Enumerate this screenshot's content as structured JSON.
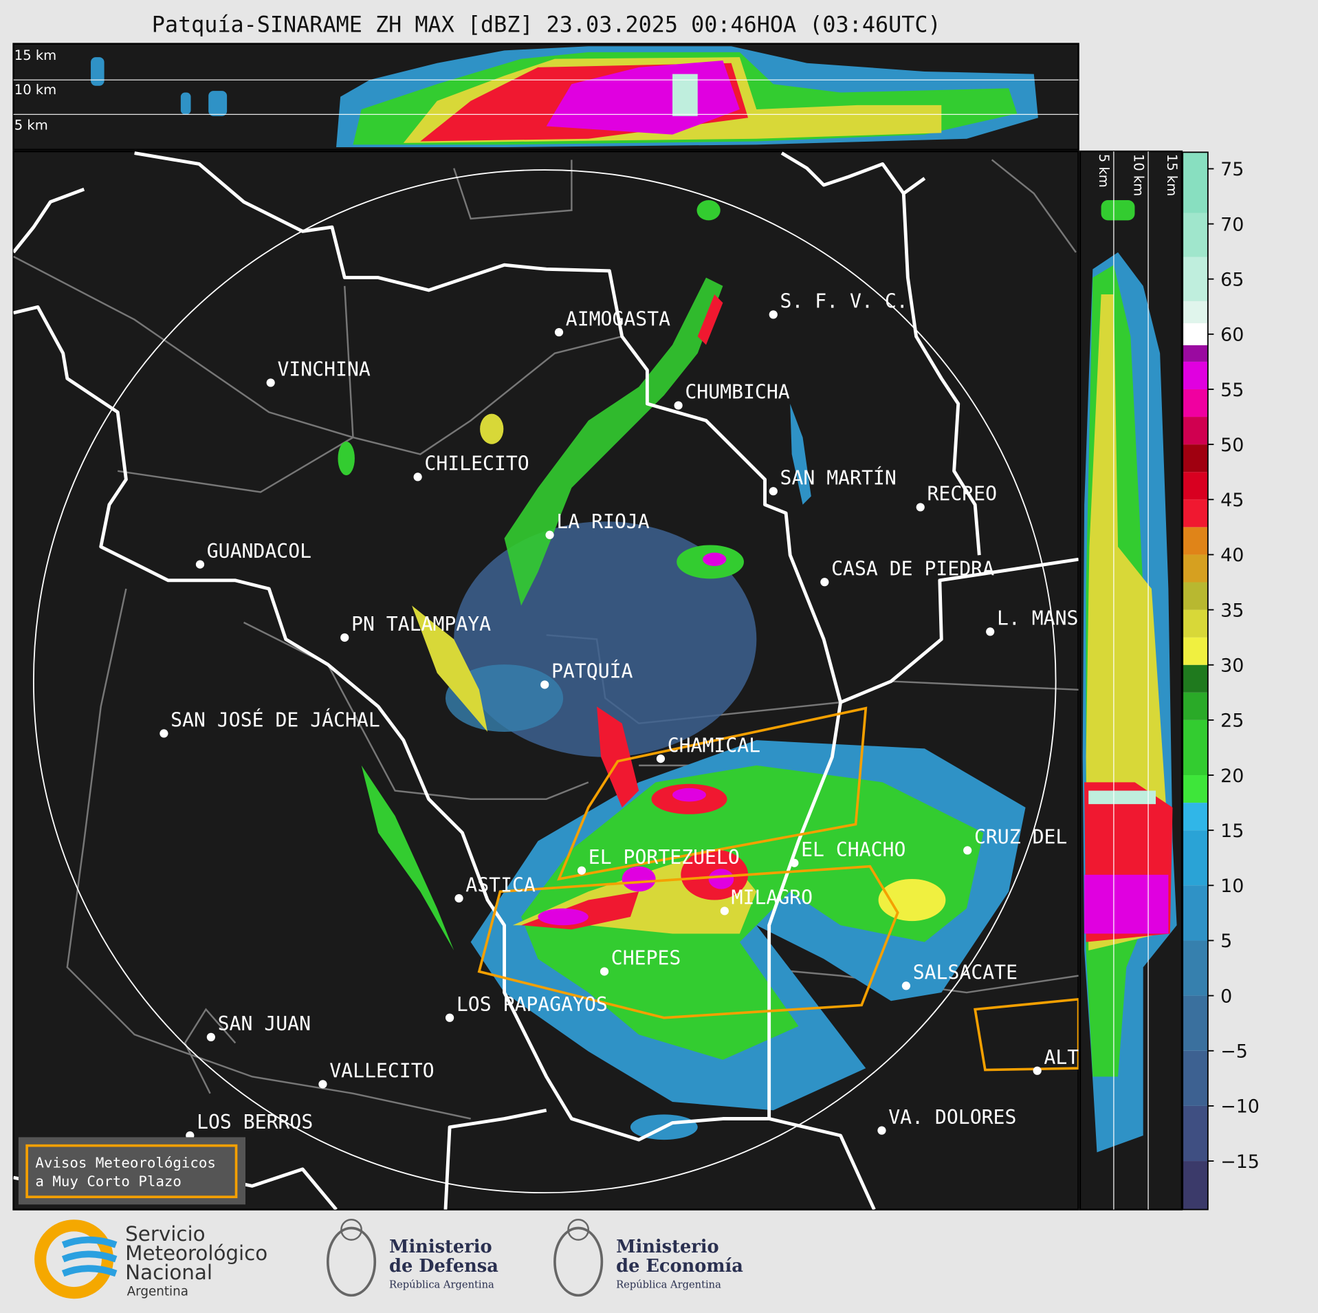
{
  "title": "Patquía-SINARAME ZH MAX [dBZ] 23.03.2025 00:46HOA (03:46UTC)",
  "cross_section": {
    "height_labels": [
      "15 km",
      "10 km",
      "5 km"
    ]
  },
  "side_section": {
    "height_labels": [
      "5 km",
      "10 km",
      "15 km"
    ]
  },
  "cities": [
    "S. F. V. C.",
    "AIMOGASTA",
    "VINCHINA",
    "CHUMBICHA",
    "CHILECITO",
    "SAN MARTÍN",
    "RECREO",
    "LA RIOJA",
    "GUANDACOL",
    "CASA DE PIEDRA",
    "L. MANS",
    "PN TALAMPAYA",
    "PATQUÍA",
    "SAN JOSÉ DE JÁCHAL",
    "CHAMICAL",
    "CRUZ DEL",
    "EL CHACHO",
    "EL PORTEZUELO",
    "ASTICA",
    "MILAGRO",
    "CHEPES",
    "SALSACATE",
    "LOS PAPAGAYOS",
    "SAN JUAN",
    "ALT",
    "VALLECITO",
    "VA. DOLORES",
    "LOS BERROS"
  ],
  "colorbar": {
    "clim": [
      -19.4,
      76.5
    ],
    "ticks": [
      75,
      70,
      65,
      60,
      55,
      50,
      45,
      40,
      35,
      30,
      25,
      20,
      15,
      10,
      5,
      0,
      {
        "value": -5,
        "label": "−5"
      },
      {
        "value": -10,
        "label": "−10"
      },
      {
        "value": -15,
        "label": "−15"
      }
    ],
    "colorscale": [
      {
        "from": -20,
        "color": "#3b3a6a"
      },
      {
        "from": -15,
        "color": "#3f4f82"
      },
      {
        "from": -10,
        "color": "#3d6191"
      },
      {
        "from": -5,
        "color": "#3a709e"
      },
      {
        "from": 0,
        "color": "#3680ae"
      },
      {
        "from": 5,
        "color": "#2f92c6"
      },
      {
        "from": 10,
        "color": "#2aa3d6"
      },
      {
        "from": 15,
        "color": "#30b6e8"
      },
      {
        "from": 17.5,
        "color": "#3ee63a"
      },
      {
        "from": 20,
        "color": "#33cc30"
      },
      {
        "from": 25,
        "color": "#2aaa28"
      },
      {
        "from": 27.5,
        "color": "#1f7a1e"
      },
      {
        "from": 30,
        "color": "#f0f040"
      },
      {
        "from": 32.5,
        "color": "#d8d838"
      },
      {
        "from": 35,
        "color": "#b8b830"
      },
      {
        "from": 37.5,
        "color": "#d6a020"
      },
      {
        "from": 40,
        "color": "#e08418"
      },
      {
        "from": 42.5,
        "color": "#f01830"
      },
      {
        "from": 45,
        "color": "#d80020"
      },
      {
        "from": 47.5,
        "color": "#a00010"
      },
      {
        "from": 50,
        "color": "#d00050"
      },
      {
        "from": 52.5,
        "color": "#f000a0"
      },
      {
        "from": 55,
        "color": "#e000e0"
      },
      {
        "from": 57.5,
        "color": "#9a0aa0"
      },
      {
        "from": 59,
        "color": "#ffffff"
      },
      {
        "from": 61,
        "color": "#e0f5ec"
      },
      {
        "from": 63,
        "color": "#bfeedd"
      },
      {
        "from": 67,
        "color": "#a0e6cc"
      },
      {
        "from": 71,
        "color": "#88dfc0"
      }
    ]
  },
  "legend": {
    "lines": [
      "Avisos Meteorológicos",
      "a Muy Corto Plazo"
    ]
  },
  "logos": {
    "smn": [
      "Servicio",
      "Meteorológico",
      "Nacional",
      "Argentina"
    ],
    "defensa": [
      "Ministerio",
      "de Defensa",
      "República Argentina"
    ],
    "economia": [
      "Ministerio",
      "de Economía",
      "República Argentina"
    ]
  }
}
